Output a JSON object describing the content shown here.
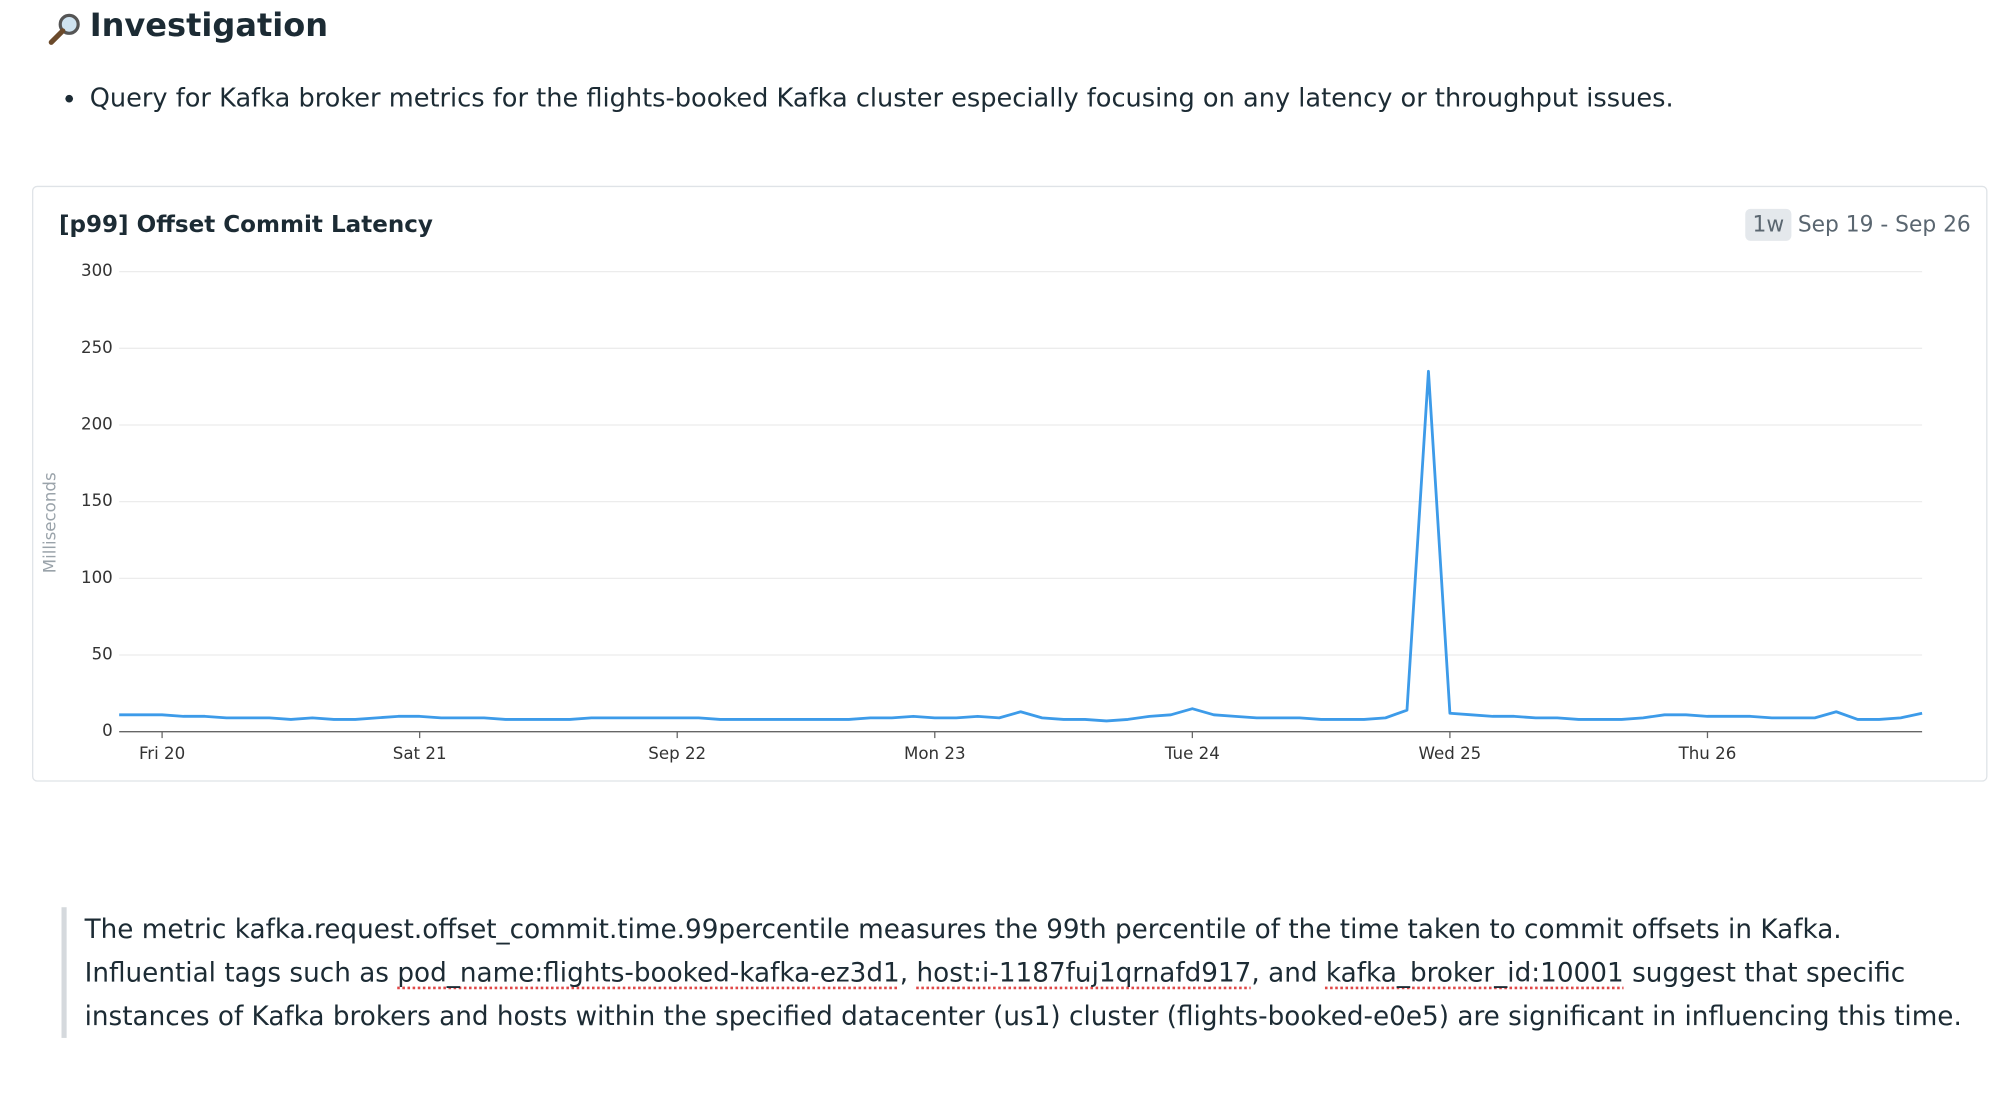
{
  "header": {
    "title": "Investigation"
  },
  "bullets": [
    "Query for Kafka broker metrics for the flights-booked Kafka cluster especially focusing on any latency or throughput issues."
  ],
  "chart_data": {
    "type": "line",
    "title": "[p99] Offset Commit Latency",
    "time_badge": "1w",
    "time_range": "Sep 19 - Sep 26",
    "y_label": "Milliseconds",
    "series": [
      {
        "name": "kafka.request.offset_commit.time.99percentile",
        "color": "#3d9be9",
        "values": [
          11,
          11,
          11,
          10,
          10,
          9,
          9,
          9,
          8,
          9,
          8,
          8,
          9,
          10,
          10,
          9,
          9,
          9,
          8,
          8,
          8,
          8,
          9,
          9,
          9,
          9,
          9,
          9,
          8,
          8,
          8,
          8,
          8,
          8,
          8,
          9,
          9,
          10,
          9,
          9,
          10,
          9,
          13,
          9,
          8,
          8,
          7,
          8,
          10,
          11,
          15,
          11,
          10,
          9,
          9,
          9,
          8,
          8,
          8,
          9,
          14,
          235,
          12,
          11,
          10,
          10,
          9,
          9,
          8,
          8,
          8,
          9,
          11,
          11,
          10,
          10,
          10,
          9,
          9,
          9,
          13,
          8,
          8,
          9,
          12
        ]
      }
    ],
    "xlim": [
      0,
      84
    ],
    "xticks": [
      {
        "value": 2,
        "label": "Fri 20"
      },
      {
        "value": 14,
        "label": "Sat 21"
      },
      {
        "value": 26,
        "label": "Sep 22"
      },
      {
        "value": 38,
        "label": "Mon 23"
      },
      {
        "value": 50,
        "label": "Tue 24"
      },
      {
        "value": 62,
        "label": "Wed 25"
      },
      {
        "value": 74,
        "label": "Thu 26"
      }
    ],
    "ylim": [
      0,
      300
    ],
    "yticks": [
      0,
      50,
      100,
      150,
      200,
      250,
      300
    ],
    "grid": true
  },
  "quote": {
    "segments": [
      {
        "text": "The metric kafka.request.offset_commit.time.99percentile measures the 99th percentile of the time taken to commit offsets in Kafka. Influential tags such as "
      },
      {
        "text": "pod_name:flights-booked-kafka-ez3d1",
        "tag": true
      },
      {
        "text": ", "
      },
      {
        "text": "host:i-1187fuj1qrnafd917",
        "tag": true
      },
      {
        "text": ", and "
      },
      {
        "text": "kafka_broker_id:10001",
        "tag": true
      },
      {
        "text": " suggest that specific instances of Kafka brokers and hosts within the specified datacenter (us1) cluster (flights-booked-e0e5) are significant in influencing this time."
      }
    ]
  }
}
